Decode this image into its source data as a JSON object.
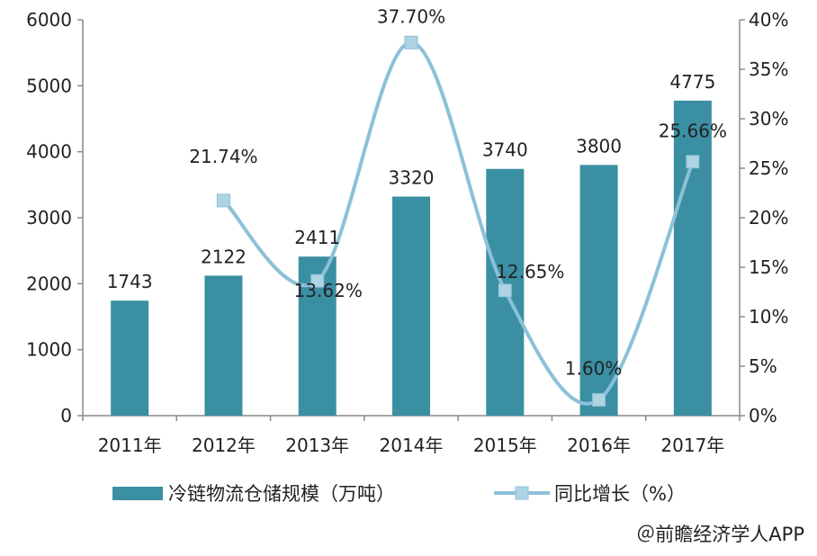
{
  "chart_data": {
    "type": "bar",
    "categories": [
      "2011年",
      "2012年",
      "2013年",
      "2014年",
      "2015年",
      "2016年",
      "2017年"
    ],
    "series": [
      {
        "name": "冷链物流仓储规模（万吨）",
        "type": "bar",
        "axis": "left",
        "values": [
          1743,
          2122,
          2411,
          3320,
          3740,
          3800,
          4775
        ],
        "labels": [
          "1743",
          "2122",
          "2411",
          "3320",
          "3740",
          "3800",
          "4775"
        ],
        "color": "#3a8fa3"
      },
      {
        "name": "同比增长（%）",
        "type": "line",
        "axis": "right",
        "values": [
          null,
          21.74,
          13.62,
          37.7,
          12.65,
          1.6,
          25.66
        ],
        "labels": [
          "",
          "21.74%",
          "13.62%",
          "37.70%",
          "12.65%",
          "1.60%",
          "25.66%"
        ],
        "color": "#8cc1d8",
        "marker_color": "#aed3e3"
      }
    ],
    "y_left": {
      "ylim": [
        0,
        6000
      ],
      "ticks": [
        "0",
        "1000",
        "2000",
        "3000",
        "4000",
        "5000",
        "6000"
      ]
    },
    "y_right": {
      "ylim": [
        0,
        40
      ],
      "ticks": [
        "0%",
        "5%",
        "10%",
        "15%",
        "20%",
        "25%",
        "30%",
        "35%",
        "40%"
      ]
    },
    "grid": false,
    "legend_position": "bottom"
  },
  "credit": "＠前瞻经济学人APP"
}
